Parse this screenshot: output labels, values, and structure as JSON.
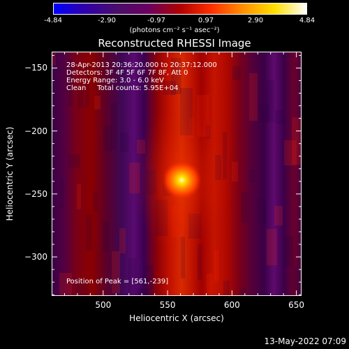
{
  "colorbar": {
    "ticks": [
      "-4.84",
      "-2.90",
      "-0.97",
      "0.97",
      "2.90",
      "4.84"
    ],
    "unit_label": "(photons cm⁻² s⁻¹ asec⁻²)",
    "colors": [
      "#0000ff",
      "#3000a8",
      "#4a0e6a",
      "#6a0060",
      "#b00000",
      "#ff3000",
      "#ff9000",
      "#ffe000",
      "#ffffff"
    ]
  },
  "chart_data": {
    "type": "heatmap",
    "title": "Reconstructed RHESSI Image",
    "xlabel": "Heliocentric X (arcsec)",
    "ylabel": "Heliocentric Y (arcsec)",
    "xlim": [
      460,
      654
    ],
    "ylim": [
      -331,
      -137
    ],
    "xticks": [
      500,
      550,
      600,
      650
    ],
    "yticks": [
      -150,
      -200,
      -250,
      -300
    ],
    "peak": {
      "x": 561,
      "y": -239
    },
    "info_lines": [
      "28-Apr-2013 20:36:20.000 to 20:37:12.000",
      "Detectors: 3F 4F 5F 6F 7F 8F, Att 0",
      "Energy Range: 3.0 - 6.0 keV",
      "Clean     Total counts: 5.95E+04"
    ],
    "peak_label": "Position of Peak = [561,-239]"
  },
  "footer": {
    "timestamp": "13-May-2022 07:09"
  }
}
